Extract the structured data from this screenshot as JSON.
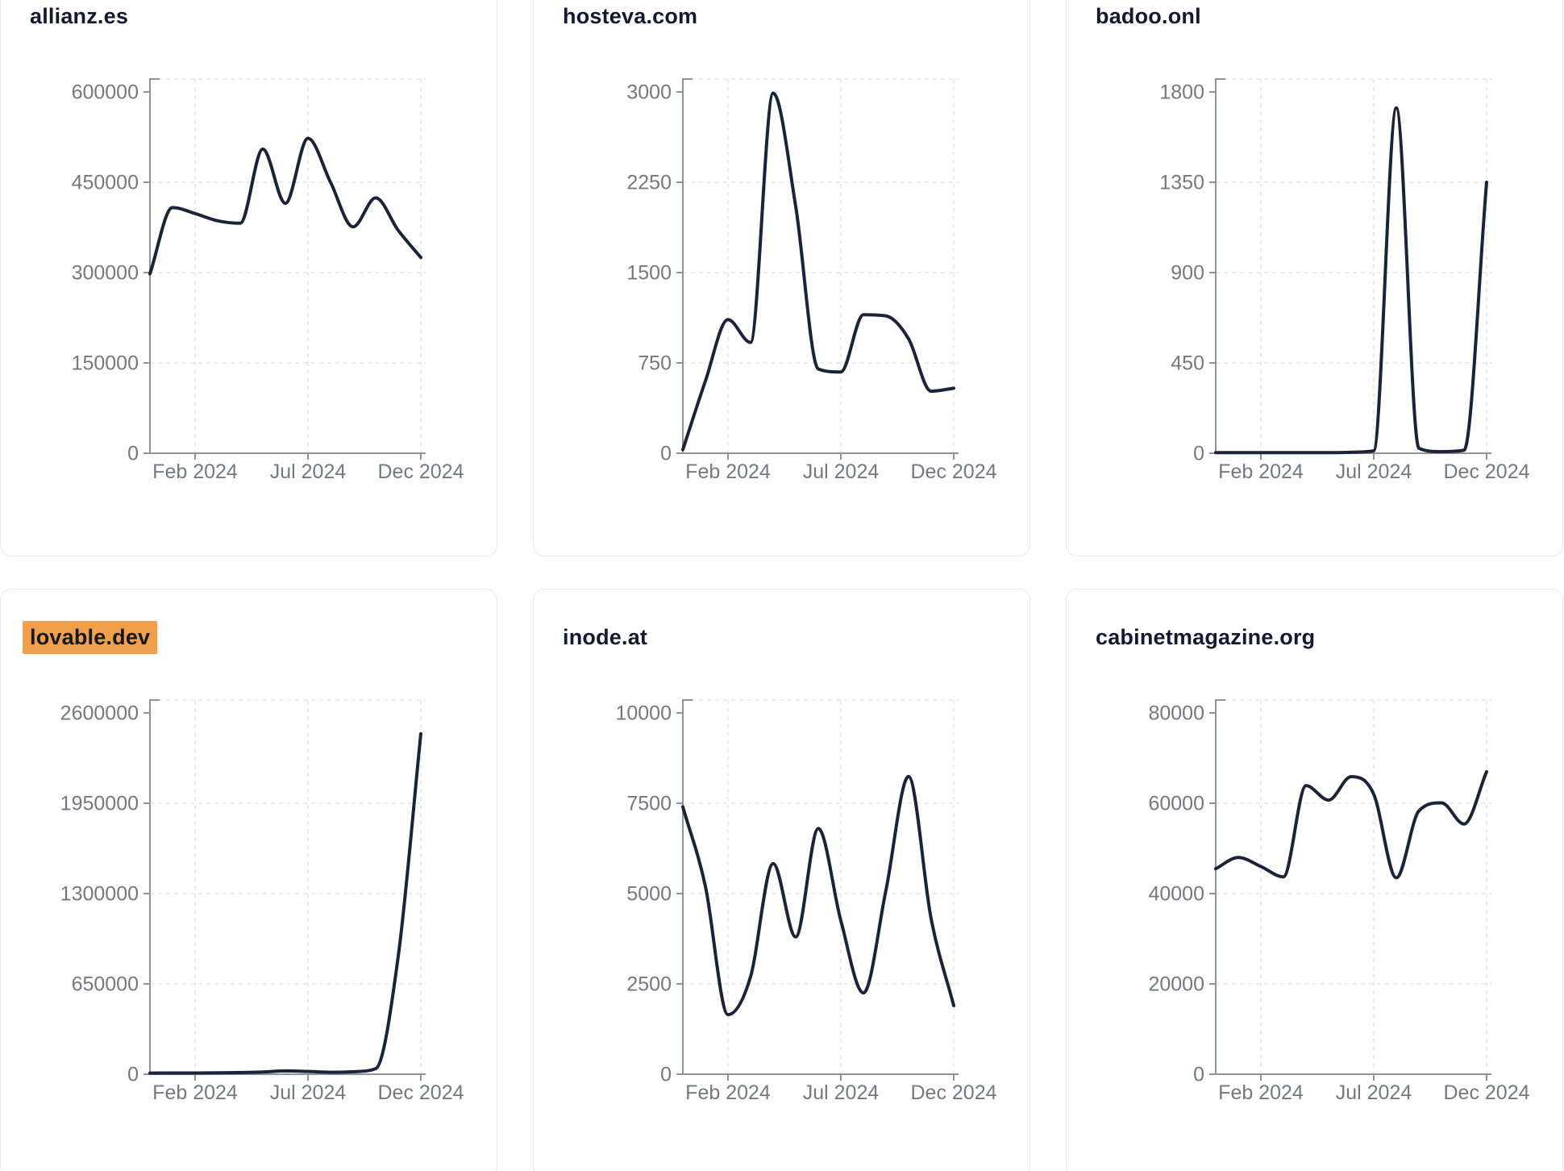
{
  "page": {
    "background": "#ffffff",
    "card_border_color": "#e7e8ec",
    "title_color": "#121a31",
    "highlight_color": "#f0a04b"
  },
  "shared": {
    "line_color": "#1b2339",
    "axis_color": "#8f949c",
    "gridline_color": "#e3e5e9",
    "tick_text_color": "#74787f",
    "x_tick_labels": [
      "Feb 2024",
      "Jul 2024",
      "Dec 2024"
    ],
    "x_tick_month_indices": [
      2,
      7,
      12
    ],
    "months": [
      "Dec 2023",
      "Jan 2024",
      "Feb 2024",
      "Mar 2024",
      "Apr 2024",
      "May 2024",
      "Jun 2024",
      "Jul 2024",
      "Aug 2024",
      "Sep 2024",
      "Oct 2024",
      "Nov 2024",
      "Dec 2024"
    ],
    "grid": "dashed",
    "legend": "none"
  },
  "chart_data": [
    {
      "type": "line",
      "title": "allianz.es",
      "title_highlight": false,
      "ylim": [
        0,
        600000
      ],
      "y_ticks": [
        0,
        150000,
        300000,
        450000,
        600000
      ],
      "x_tick_labels": [
        "Feb 2024",
        "Jul 2024",
        "Dec 2024"
      ],
      "values": [
        298000,
        408000,
        398000,
        386000,
        382000,
        505000,
        415000,
        523000,
        450000,
        376000,
        424000,
        370000,
        325000
      ]
    },
    {
      "type": "line",
      "title": "hosteva.com",
      "title_highlight": false,
      "ylim": [
        0,
        3000
      ],
      "y_ticks": [
        0,
        750,
        1500,
        2250,
        3000
      ],
      "x_tick_labels": [
        "Feb 2024",
        "Jul 2024",
        "Dec 2024"
      ],
      "values": [
        30,
        600,
        1110,
        920,
        2990,
        2050,
        700,
        675,
        1150,
        1140,
        950,
        515,
        540
      ]
    },
    {
      "type": "line",
      "title": "badoo.onl",
      "title_highlight": false,
      "ylim": [
        0,
        1800
      ],
      "y_ticks": [
        0,
        450,
        900,
        1350,
        1800
      ],
      "x_tick_labels": [
        "Feb 2024",
        "Jul 2024",
        "Dec 2024"
      ],
      "values": [
        3,
        3,
        3,
        3,
        3,
        3,
        5,
        12,
        1720,
        25,
        8,
        15,
        1350
      ]
    },
    {
      "type": "line",
      "title": "lovable.dev",
      "title_highlight": true,
      "ylim": [
        0,
        2600000
      ],
      "y_ticks": [
        0,
        650000,
        1300000,
        1950000,
        2600000
      ],
      "x_tick_labels": [
        "Feb 2024",
        "Jul 2024",
        "Dec 2024"
      ],
      "values": [
        8000,
        9000,
        9000,
        10000,
        12000,
        16000,
        24000,
        20000,
        14000,
        18000,
        40000,
        850000,
        2450000
      ]
    },
    {
      "type": "line",
      "title": "inode.at",
      "title_highlight": false,
      "ylim": [
        0,
        10000
      ],
      "y_ticks": [
        0,
        2500,
        5000,
        7500,
        10000
      ],
      "x_tick_labels": [
        "Feb 2024",
        "Jul 2024",
        "Dec 2024"
      ],
      "values": [
        7400,
        5200,
        1650,
        2700,
        5830,
        3800,
        6800,
        4250,
        2250,
        5100,
        8240,
        4300,
        1900
      ]
    },
    {
      "type": "line",
      "title": "cabinetmagazine.org",
      "title_highlight": false,
      "ylim": [
        0,
        80000
      ],
      "y_ticks": [
        0,
        20000,
        40000,
        60000,
        80000
      ],
      "x_tick_labels": [
        "Feb 2024",
        "Jul 2024",
        "Dec 2024"
      ],
      "values": [
        45500,
        48000,
        46000,
        43700,
        63900,
        60700,
        65900,
        62000,
        43500,
        58300,
        60100,
        55400,
        67000
      ]
    }
  ]
}
